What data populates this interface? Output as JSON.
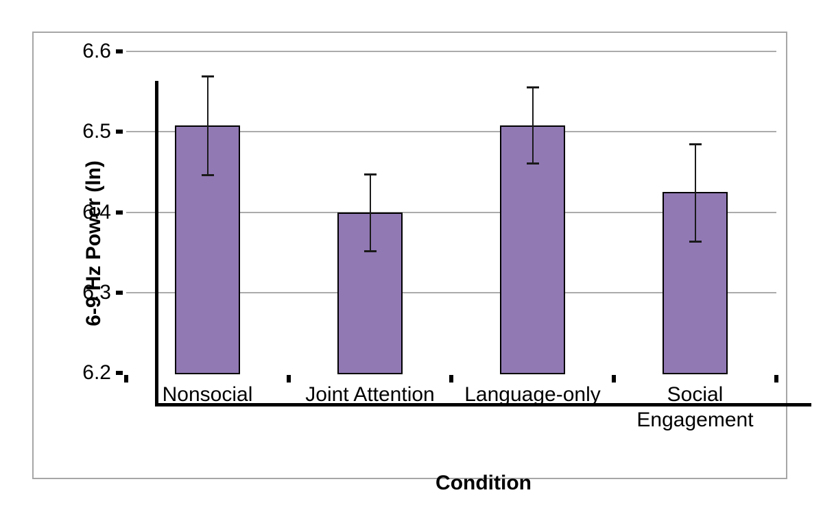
{
  "chart_data": {
    "type": "bar",
    "title": "",
    "categories": [
      "Nonsocial",
      "Joint Attention",
      "Language-only",
      "Social Engagement"
    ],
    "values": [
      6.507,
      6.399,
      6.507,
      6.424
    ],
    "error_upper": [
      6.569,
      6.447,
      6.556,
      6.485
    ],
    "error_lower": [
      6.446,
      6.351,
      6.46,
      6.363
    ],
    "xlabel": "Condition",
    "ylabel": "6-9 Hz Power (ln)",
    "ylim": [
      6.2,
      6.6
    ],
    "yticks": [
      6.2,
      6.3,
      6.4,
      6.5,
      6.6
    ],
    "ytick_labels": [
      "6.2",
      "6.3",
      "6.4",
      "6.5",
      "6.6"
    ],
    "grid": true,
    "legend": "none",
    "colors": {
      "bar_fill": "#9179B4",
      "bar_border": "#000000",
      "error_bar": "#1A1A1A",
      "gridline": "#ABABAB",
      "axis": "#000000",
      "frame_border": "#A6A6A6",
      "background": "#FFFFFF",
      "text": "#000000"
    }
  }
}
